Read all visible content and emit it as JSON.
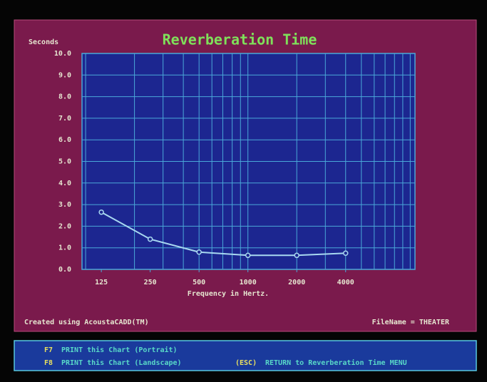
{
  "chart_data": {
    "type": "line",
    "title": "Reverberation Time",
    "y_label": "Seconds",
    "x_label": "Frequency in Hertz.",
    "x": [
      125,
      250,
      500,
      1000,
      2000,
      4000
    ],
    "series": [
      {
        "name": "Reverberation Time",
        "color": "#a8d8f0",
        "values": [
          2.65,
          1.4,
          0.8,
          0.65,
          0.65,
          0.75
        ]
      }
    ],
    "xscale": "log",
    "xlim": [
      95,
      10700
    ],
    "xticks": [
      125,
      250,
      500,
      1000,
      2000,
      4000
    ],
    "xminor": [
      100,
      200,
      300,
      400,
      500,
      600,
      700,
      800,
      900,
      1000,
      2000,
      3000,
      4000,
      5000,
      6000,
      7000,
      8000,
      9000,
      10000
    ],
    "ylim": [
      0,
      10
    ],
    "yticks": [
      {
        "value": 0,
        "label": "0.0"
      },
      {
        "value": 1,
        "label": "1.0"
      },
      {
        "value": 2,
        "label": "2.0"
      },
      {
        "value": 3,
        "label": "3.0"
      },
      {
        "value": 4,
        "label": "4.0"
      },
      {
        "value": 5,
        "label": "5.0"
      },
      {
        "value": 6,
        "label": "6.0"
      },
      {
        "value": 7,
        "label": "7.0"
      },
      {
        "value": 8,
        "label": "8.0"
      },
      {
        "value": 9,
        "label": "9.0"
      },
      {
        "value": 10,
        "label": "10.0"
      }
    ],
    "grid": true
  },
  "status": {
    "left": "Created using AcoustaCADD(TM)",
    "right": "FileName = THEATER"
  },
  "menu": [
    {
      "key": "F7",
      "text": "PRINT this Chart (Portrait)"
    },
    {
      "key": "F8",
      "text": "PRINT this Chart (Landscape)"
    },
    {
      "key": "(ESC)",
      "text": "RETURN to Reverberation Time MENU"
    }
  ]
}
